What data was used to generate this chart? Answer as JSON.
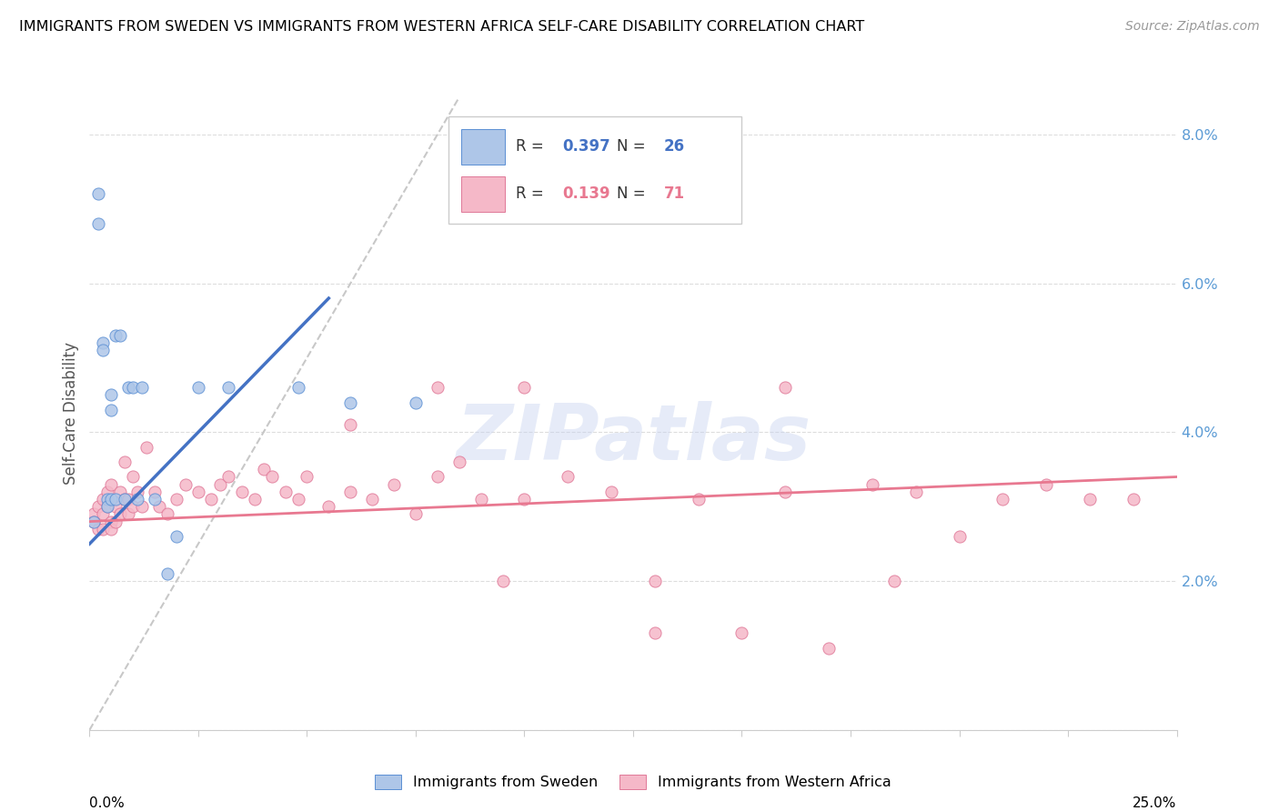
{
  "title": "IMMIGRANTS FROM SWEDEN VS IMMIGRANTS FROM WESTERN AFRICA SELF-CARE DISABILITY CORRELATION CHART",
  "source": "Source: ZipAtlas.com",
  "ylabel": "Self-Care Disability",
  "xlim": [
    0.0,
    0.25
  ],
  "ylim": [
    0.0,
    0.085
  ],
  "yticks": [
    0.0,
    0.02,
    0.04,
    0.06,
    0.08
  ],
  "ytick_labels": [
    "",
    "2.0%",
    "4.0%",
    "6.0%",
    "8.0%"
  ],
  "color_sweden": "#aec6e8",
  "color_sweden_edge": "#5b8fd4",
  "color_wa": "#f5b8c8",
  "color_wa_edge": "#e07898",
  "color_sweden_line": "#4472c4",
  "color_wa_line": "#e87890",
  "color_diag": "#c8c8c8",
  "legend_r1_val": "0.397",
  "legend_n1_val": "26",
  "legend_r2_val": "0.139",
  "legend_n2_val": "71",
  "sweden_x": [
    0.001,
    0.002,
    0.002,
    0.003,
    0.003,
    0.004,
    0.004,
    0.005,
    0.005,
    0.005,
    0.006,
    0.006,
    0.007,
    0.008,
    0.009,
    0.01,
    0.011,
    0.012,
    0.015,
    0.018,
    0.02,
    0.025,
    0.032,
    0.048,
    0.06,
    0.075
  ],
  "sweden_y": [
    0.028,
    0.072,
    0.068,
    0.052,
    0.051,
    0.031,
    0.03,
    0.045,
    0.043,
    0.031,
    0.053,
    0.031,
    0.053,
    0.031,
    0.046,
    0.046,
    0.031,
    0.046,
    0.031,
    0.021,
    0.026,
    0.046,
    0.046,
    0.046,
    0.044,
    0.044
  ],
  "wa_x": [
    0.001,
    0.001,
    0.002,
    0.002,
    0.003,
    0.003,
    0.003,
    0.004,
    0.004,
    0.005,
    0.005,
    0.005,
    0.006,
    0.006,
    0.007,
    0.007,
    0.008,
    0.008,
    0.009,
    0.009,
    0.01,
    0.01,
    0.011,
    0.012,
    0.013,
    0.015,
    0.016,
    0.018,
    0.02,
    0.022,
    0.025,
    0.028,
    0.03,
    0.032,
    0.035,
    0.038,
    0.04,
    0.042,
    0.045,
    0.048,
    0.05,
    0.055,
    0.06,
    0.065,
    0.07,
    0.075,
    0.08,
    0.085,
    0.09,
    0.095,
    0.1,
    0.11,
    0.12,
    0.13,
    0.14,
    0.15,
    0.16,
    0.17,
    0.18,
    0.19,
    0.2,
    0.21,
    0.22,
    0.23,
    0.24,
    0.185,
    0.16,
    0.13,
    0.1,
    0.08,
    0.06
  ],
  "wa_y": [
    0.029,
    0.028,
    0.03,
    0.027,
    0.031,
    0.029,
    0.027,
    0.03,
    0.032,
    0.028,
    0.027,
    0.033,
    0.03,
    0.028,
    0.032,
    0.029,
    0.036,
    0.031,
    0.031,
    0.029,
    0.034,
    0.03,
    0.032,
    0.03,
    0.038,
    0.032,
    0.03,
    0.029,
    0.031,
    0.033,
    0.032,
    0.031,
    0.033,
    0.034,
    0.032,
    0.031,
    0.035,
    0.034,
    0.032,
    0.031,
    0.034,
    0.03,
    0.032,
    0.031,
    0.033,
    0.029,
    0.034,
    0.036,
    0.031,
    0.02,
    0.031,
    0.034,
    0.032,
    0.02,
    0.031,
    0.013,
    0.032,
    0.011,
    0.033,
    0.032,
    0.026,
    0.031,
    0.033,
    0.031,
    0.031,
    0.02,
    0.046,
    0.013,
    0.046,
    0.046,
    0.041
  ],
  "sweden_line_x": [
    0.0,
    0.055
  ],
  "sweden_line_y": [
    0.025,
    0.058
  ],
  "wa_line_x": [
    0.0,
    0.25
  ],
  "wa_line_y": [
    0.028,
    0.034
  ],
  "diag_line_x": [
    0.0,
    0.085
  ],
  "diag_line_y": [
    0.0,
    0.085
  ],
  "watermark_text": "ZIPatlas",
  "watermark_color": "#c8d4f0",
  "watermark_alpha": 0.45,
  "legend_box_color": "white",
  "legend_box_edge": "#cccccc",
  "bottom_legend_labels": [
    "Immigrants from Sweden",
    "Immigrants from Western Africa"
  ]
}
